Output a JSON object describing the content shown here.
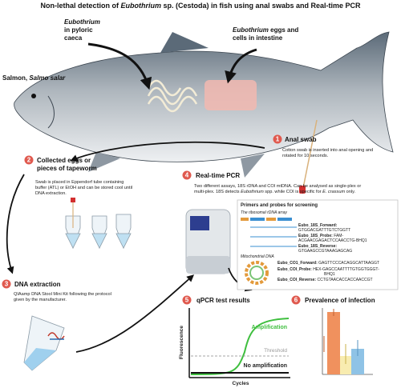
{
  "title": [
    "Non-lethal detection of ",
    "Eubothrium",
    " sp. (Cestoda) in fish using anal swabs and Real-time PCR"
  ],
  "fish_labels": {
    "caeca": [
      "Eubothrium",
      "in pyloric",
      "caeca"
    ],
    "species": [
      "Salmon, ",
      "Salmo salar"
    ],
    "intestine": [
      "Eubothrium",
      " eggs and",
      "cells in intestine"
    ]
  },
  "steps": [
    {
      "number": "1",
      "title": [
        "Anal swab"
      ],
      "description": [
        "Cotton swab is inserted into anal opening and",
        "rotated for 10 seconds."
      ]
    },
    {
      "number": "2",
      "title": [
        "Collected eggs or",
        "pieces of tapeworm"
      ],
      "description": [
        "Swab is  placed in Eppendorf tube containing",
        "buffer (ATL) or EtOH and can be stored cool until",
        "DNA extraction."
      ]
    },
    {
      "number": "3",
      "title": [
        "DNA extraction"
      ],
      "description": [
        "QIAamp DNA Stool Mini Kit following the protocol",
        "given by the manufacturer."
      ]
    },
    {
      "number": "4",
      "title": [
        "Real-time PCR"
      ],
      "description": [
        "Two different assays, 18S rDNA and COI mtDNA. Can be analysed as single-plex or",
        [
          "multi-plex. 18S detects ",
          "Eubothrium",
          " spp. while COI is specific for ",
          "E. crassum",
          " only."
        ]
      ]
    },
    {
      "number": "5",
      "title": [
        "qPCR test  results"
      ]
    },
    {
      "number": "6",
      "title": [
        "Prevalence of infection"
      ]
    }
  ],
  "primers": {
    "heading": "Primers and probes for screening",
    "groups": [
      {
        "label": "The ribosomal rDNA array",
        "items": [
          {
            "name": "Eubo_18S_Forward:",
            "sequence": [
              "GTGGACGATTTGTCTGGTT"
            ]
          },
          {
            "name": "Eubo_18S_Probe:",
            "sequence": [
              "FAM-",
              "ACGAACGAGACTCCAACCTG-BHQ1"
            ]
          },
          {
            "name": "Eubo_18S_Reverse:",
            "sequence": [
              "GTGAAGCCGTAAAGAGCAG"
            ]
          }
        ]
      },
      {
        "label": "Mitochondrial DNA",
        "items": [
          {
            "name": "Eubo_CO1_Forward:",
            "sequence": [
              "GAGTTCCCACAGGCATTAAGGT"
            ]
          },
          {
            "name": "Eubo_COI_Probe:",
            "sequence": [
              "HEX-GAGCCAATTTTGTGGTGGGT-",
              "BHQ1"
            ]
          },
          {
            "name": "Eubo_COI_Reverse:",
            "sequence": [
              "CCTGTAACACCACCAACCGT"
            ]
          }
        ]
      }
    ]
  },
  "qpcr_graph": {
    "y_label": "Fluorescence",
    "x_label": "Cycles",
    "curves": [
      "Amplification",
      "Threshold",
      "No amplification"
    ]
  }
}
